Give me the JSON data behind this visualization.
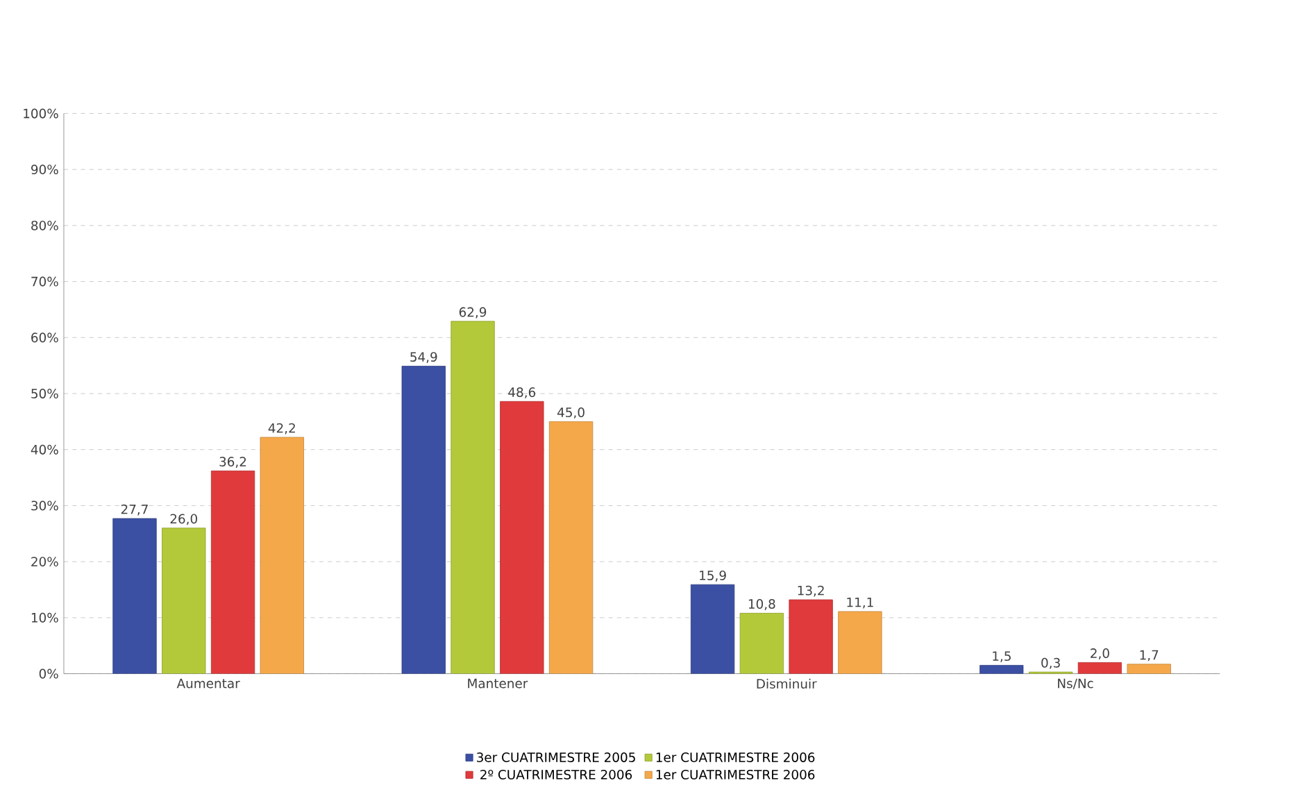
{
  "chart_data": {
    "type": "bar",
    "categories": [
      "Aumentar",
      "Mantener",
      "Disminuir",
      "Ns/Nc"
    ],
    "series": [
      {
        "name": "3er CUATRIMESTRE 2005",
        "color": "#3b4fa3",
        "values": [
          27.7,
          54.9,
          15.9,
          1.5
        ],
        "value_labels": [
          "27,7",
          "54,9",
          "15,9",
          "1,5"
        ]
      },
      {
        "name": "1er CUATRIMESTRE 2006",
        "color": "#b3c93a",
        "values": [
          26.0,
          62.9,
          10.8,
          0.3
        ],
        "value_labels": [
          "26,0",
          "62,9",
          "10,8",
          "0,3"
        ]
      },
      {
        "name": "2º CUATRIMESTRE 2006",
        "color": "#e03a3c",
        "values": [
          36.2,
          48.6,
          13.2,
          2.0
        ],
        "value_labels": [
          "36,2",
          "48,6",
          "13,2",
          "2,0"
        ]
      },
      {
        "name": "1er CUATRIMESTRE 2006",
        "color": "#f5a84a",
        "values": [
          42.2,
          45.0,
          11.1,
          1.7
        ],
        "value_labels": [
          "42,2",
          "45,0",
          "11,1",
          "1,7"
        ]
      }
    ],
    "ylim": [
      0,
      100
    ],
    "yticks": [
      {
        "value": 0,
        "label": "0%"
      },
      {
        "value": 10,
        "label": "10%"
      },
      {
        "value": 20,
        "label": "20%"
      },
      {
        "value": 30,
        "label": "30%"
      },
      {
        "value": 40,
        "label": "40%"
      },
      {
        "value": 50,
        "label": "50%"
      },
      {
        "value": 60,
        "label": "60%"
      },
      {
        "value": 70,
        "label": "70%"
      },
      {
        "value": 80,
        "label": "80%"
      },
      {
        "value": 90,
        "label": "90%"
      },
      {
        "value": 100,
        "label": "100%"
      }
    ],
    "grid": "y",
    "legend": "bottom"
  }
}
